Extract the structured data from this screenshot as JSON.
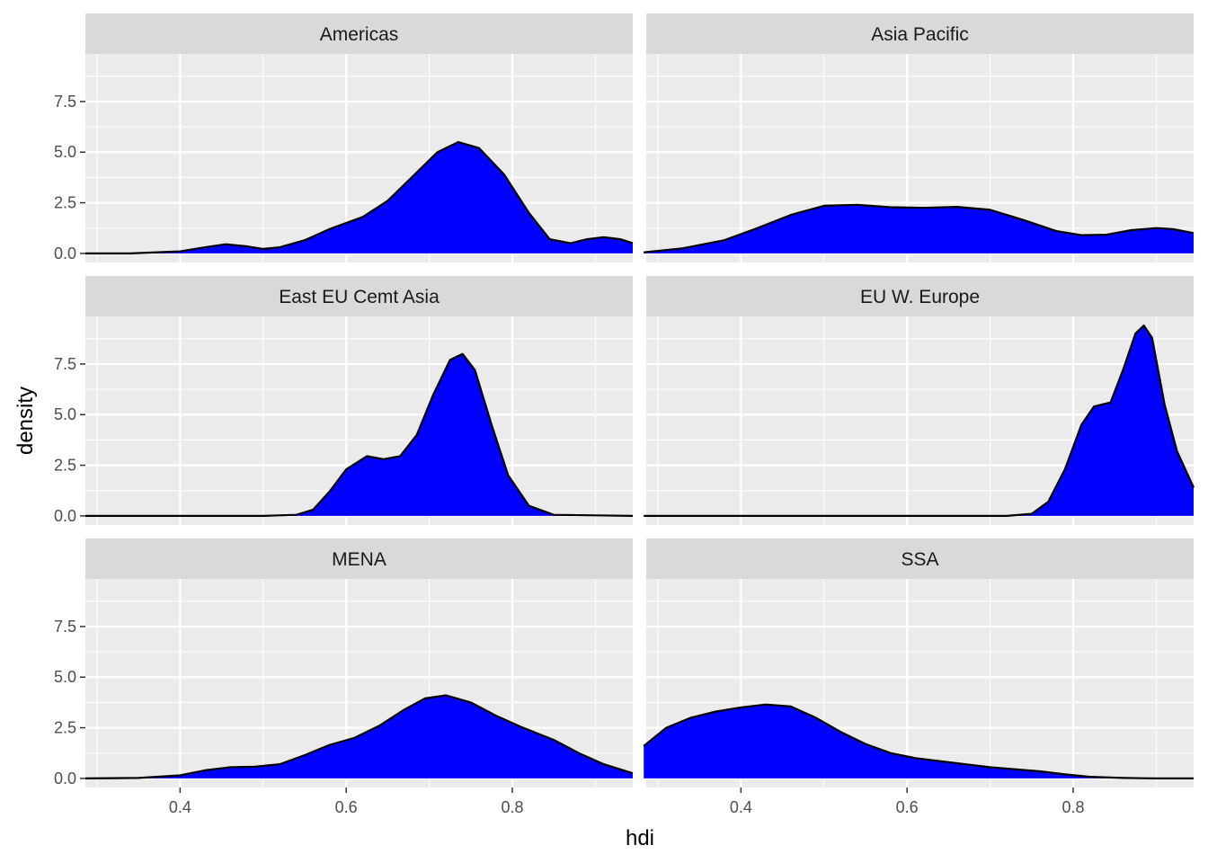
{
  "chart_data": {
    "type": "area",
    "xlabel": "hdi",
    "ylabel": "density",
    "xlim": [
      0.286,
      0.945
    ],
    "ylim": [
      -0.45,
      9.85
    ],
    "x_ticks": [
      {
        "value": 0.4,
        "label": "0.4"
      },
      {
        "value": 0.6,
        "label": "0.6"
      },
      {
        "value": 0.8,
        "label": "0.8"
      }
    ],
    "y_ticks": [
      {
        "value": 0,
        "label": "0.0"
      },
      {
        "value": 2.5,
        "label": "2.5"
      },
      {
        "value": 5,
        "label": "5.0"
      },
      {
        "value": 7.5,
        "label": "7.5"
      }
    ],
    "fill_color": "#0000ff",
    "line_color": "#000000",
    "panel_color": "#ebebeb",
    "strip_color": "#d9d9d9",
    "panels": [
      {
        "title": "Americas",
        "x": [
          0.286,
          0.34,
          0.4,
          0.43,
          0.455,
          0.48,
          0.5,
          0.52,
          0.55,
          0.58,
          0.62,
          0.65,
          0.68,
          0.71,
          0.735,
          0.76,
          0.79,
          0.82,
          0.845,
          0.87,
          0.89,
          0.91,
          0.93,
          0.945
        ],
        "y": [
          0,
          0,
          0.1,
          0.3,
          0.45,
          0.35,
          0.22,
          0.3,
          0.65,
          1.2,
          1.8,
          2.6,
          3.8,
          5.0,
          5.5,
          5.2,
          3.9,
          2.0,
          0.7,
          0.5,
          0.7,
          0.8,
          0.7,
          0.5
        ]
      },
      {
        "title": "Asia Pacific",
        "x": [
          0.283,
          0.33,
          0.38,
          0.42,
          0.46,
          0.5,
          0.54,
          0.58,
          0.62,
          0.66,
          0.7,
          0.74,
          0.78,
          0.81,
          0.84,
          0.87,
          0.9,
          0.92,
          0.945
        ],
        "y": [
          0.05,
          0.25,
          0.65,
          1.25,
          1.9,
          2.35,
          2.4,
          2.28,
          2.25,
          2.3,
          2.15,
          1.65,
          1.1,
          0.9,
          0.92,
          1.15,
          1.25,
          1.2,
          1.0
        ]
      },
      {
        "title": "East EU Cemt Asia",
        "x": [
          0.286,
          0.5,
          0.54,
          0.56,
          0.58,
          0.6,
          0.625,
          0.645,
          0.665,
          0.685,
          0.705,
          0.725,
          0.74,
          0.755,
          0.775,
          0.795,
          0.82,
          0.85,
          0.945
        ],
        "y": [
          0,
          0,
          0.05,
          0.3,
          1.2,
          2.3,
          2.95,
          2.8,
          2.95,
          4.0,
          6.0,
          7.7,
          8.0,
          7.2,
          4.5,
          2.0,
          0.5,
          0.05,
          0
        ]
      },
      {
        "title": "EU W. Europe",
        "x": [
          0.283,
          0.72,
          0.75,
          0.77,
          0.79,
          0.81,
          0.825,
          0.845,
          0.86,
          0.875,
          0.885,
          0.895,
          0.91,
          0.925,
          0.945
        ],
        "y": [
          0,
          0,
          0.1,
          0.7,
          2.3,
          4.5,
          5.4,
          5.6,
          7.2,
          9.0,
          9.4,
          8.8,
          5.5,
          3.2,
          1.4
        ]
      },
      {
        "title": "MENA",
        "x": [
          0.286,
          0.35,
          0.4,
          0.43,
          0.46,
          0.49,
          0.52,
          0.55,
          0.58,
          0.61,
          0.64,
          0.67,
          0.695,
          0.72,
          0.75,
          0.78,
          0.81,
          0.85,
          0.88,
          0.91,
          0.945
        ],
        "y": [
          0,
          0.02,
          0.15,
          0.4,
          0.55,
          0.58,
          0.7,
          1.15,
          1.65,
          2.0,
          2.6,
          3.4,
          3.95,
          4.1,
          3.75,
          3.1,
          2.55,
          1.9,
          1.25,
          0.7,
          0.25
        ]
      },
      {
        "title": "SSA",
        "x": [
          0.283,
          0.31,
          0.34,
          0.37,
          0.4,
          0.43,
          0.46,
          0.49,
          0.52,
          0.55,
          0.58,
          0.61,
          0.64,
          0.67,
          0.7,
          0.73,
          0.76,
          0.79,
          0.82,
          0.86,
          0.9,
          0.945
        ],
        "y": [
          1.6,
          2.5,
          3.0,
          3.3,
          3.5,
          3.65,
          3.55,
          3.0,
          2.3,
          1.7,
          1.25,
          1.0,
          0.85,
          0.7,
          0.55,
          0.45,
          0.35,
          0.2,
          0.08,
          0.02,
          0,
          0
        ]
      }
    ]
  }
}
